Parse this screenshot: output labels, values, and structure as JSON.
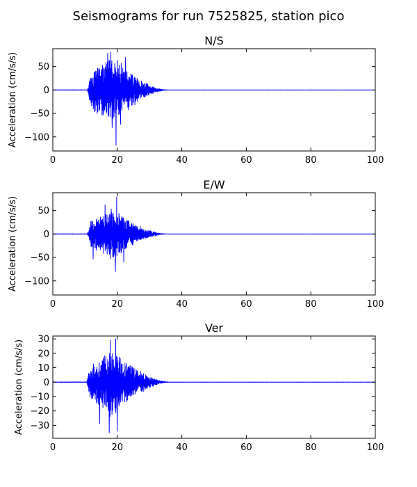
{
  "figure": {
    "suptitle": "Seismograms for run 7525825, station pico"
  },
  "chart_data": [
    {
      "type": "line",
      "title": "N/S",
      "xlabel": "",
      "ylabel": "Acceleration (cm/s/s)",
      "xlim": [
        0,
        100
      ],
      "ylim": [
        -130,
        88
      ],
      "xticks": [
        0,
        20,
        40,
        60,
        80,
        100
      ],
      "yticks": [
        -100,
        -50,
        0,
        50
      ],
      "grid": false,
      "color": "#0000ff",
      "envelope": {
        "onset": 10.7,
        "peak_time": 18.5,
        "end": 35.5,
        "amplitude": 68,
        "noise": 0.4,
        "seed": 11
      },
      "extremes": [
        {
          "x": 17.0,
          "y": 78
        },
        {
          "x": 18.0,
          "y": 80
        },
        {
          "x": 19.6,
          "y": -118
        },
        {
          "x": 18.4,
          "y": -80
        },
        {
          "x": 21.0,
          "y": -73
        },
        {
          "x": 22.5,
          "y": 69
        }
      ]
    },
    {
      "type": "line",
      "title": "E/W",
      "xlabel": "",
      "ylabel": "Acceleration (cm/s/s)",
      "xlim": [
        0,
        100
      ],
      "ylim": [
        -130,
        88
      ],
      "xticks": [
        0,
        20,
        40,
        60,
        80,
        100
      ],
      "yticks": [
        -100,
        -50,
        0,
        50
      ],
      "grid": false,
      "color": "#0000ff",
      "envelope": {
        "onset": 10.7,
        "peak_time": 19,
        "end": 35,
        "amplitude": 50,
        "noise": 0.4,
        "seed": 23
      },
      "extremes": [
        {
          "x": 19.8,
          "y": 79
        },
        {
          "x": 16.2,
          "y": 62
        },
        {
          "x": 19.4,
          "y": -80
        },
        {
          "x": 12.5,
          "y": -53
        },
        {
          "x": 22.0,
          "y": -60
        }
      ]
    },
    {
      "type": "line",
      "title": "Ver",
      "xlabel": "",
      "ylabel": "Acceleration (cm/s/s)",
      "xlim": [
        0,
        100
      ],
      "ylim": [
        -39,
        32
      ],
      "xticks": [
        0,
        20,
        40,
        60,
        80,
        100
      ],
      "yticks": [
        -30,
        -20,
        -10,
        0,
        10,
        20,
        30
      ],
      "grid": false,
      "color": "#0000ff",
      "envelope": {
        "onset": 10.5,
        "peak_time": 18.5,
        "end": 36,
        "amplitude": 22,
        "noise": 0.15,
        "seed": 37
      },
      "extremes": [
        {
          "x": 19.5,
          "y": 30
        },
        {
          "x": 17.8,
          "y": 29
        },
        {
          "x": 17.5,
          "y": -35
        },
        {
          "x": 20.0,
          "y": -34
        },
        {
          "x": 14.5,
          "y": -29
        }
      ]
    }
  ]
}
